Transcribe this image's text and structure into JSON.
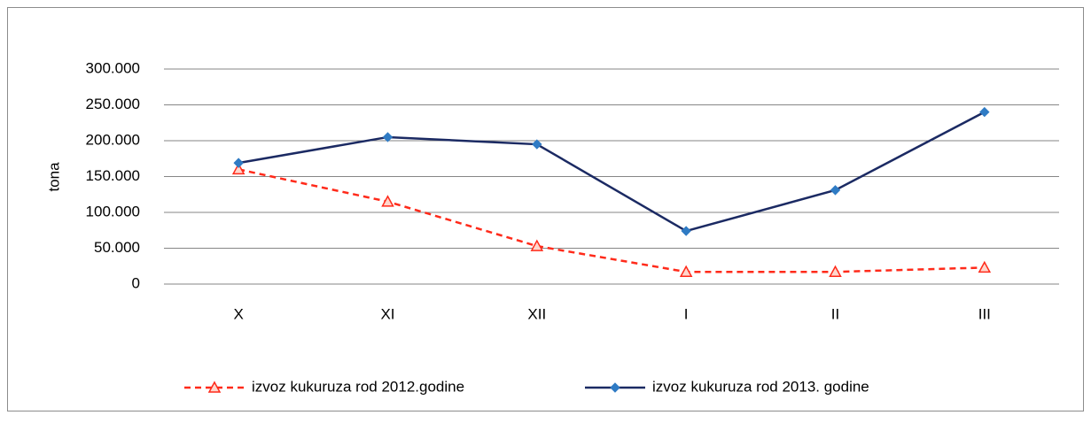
{
  "chart_data": {
    "type": "line",
    "y_label": "tona",
    "categories": [
      "X",
      "XI",
      "XII",
      "I",
      "II",
      "III"
    ],
    "series": [
      {
        "name": "izvoz kukuruza rod 2012.godine",
        "color": "#ff2a1a",
        "line_style": "dashed",
        "marker": "triangle",
        "values": [
          160000,
          115000,
          53000,
          17000,
          17000,
          23000
        ]
      },
      {
        "name": "izvoz kukuruza rod 2013. godine",
        "color": "#1b2a63",
        "marker_color": "#2f7bc4",
        "line_style": "solid",
        "marker": "diamond",
        "values": [
          169000,
          205000,
          195000,
          74000,
          131000,
          240000
        ]
      }
    ],
    "ylim": [
      0,
      300000
    ],
    "yticks": [
      0,
      {
        "value": 50000,
        "label": "50.000"
      },
      {
        "value": 100000,
        "label": "100.000"
      },
      {
        "value": 150000,
        "label": "150.000"
      },
      {
        "value": 200000,
        "label": "200.000"
      },
      {
        "value": 250000,
        "label": "250.000"
      },
      {
        "value": 300000,
        "label": "300.000"
      }
    ],
    "grid": true,
    "legend": "bottom"
  }
}
